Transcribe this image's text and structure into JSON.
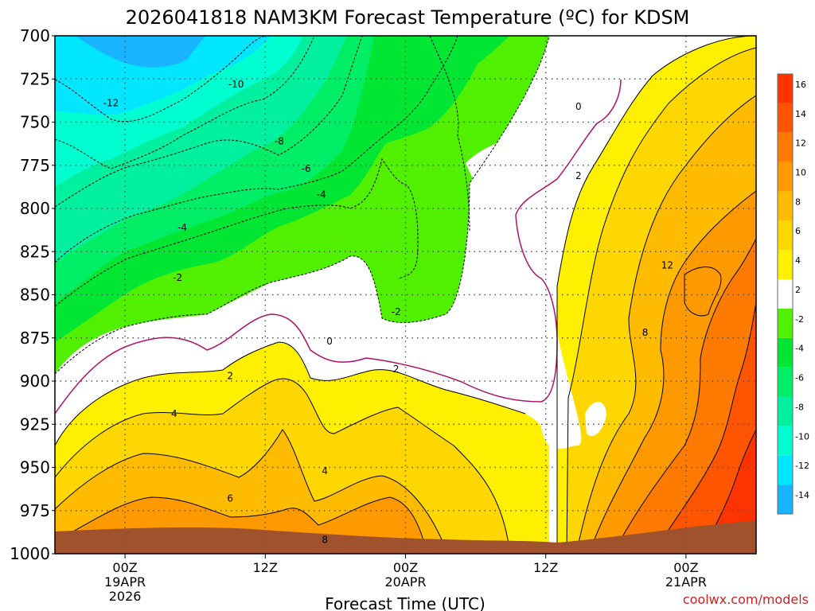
{
  "chart_data": {
    "type": "heatmap",
    "title": "2026041818 NAM3KM Forecast Temperature (ºC) for KDSM",
    "xlabel": "Forecast Time (UTC)",
    "ylabel": "",
    "credit": "coolwx.com/models",
    "x_ticks": [
      {
        "hour": 6,
        "lines": [
          "00Z",
          "19APR",
          "2026"
        ]
      },
      {
        "hour": 18,
        "lines": [
          "12Z"
        ]
      },
      {
        "hour": 30,
        "lines": [
          "00Z",
          "20APR"
        ]
      },
      {
        "hour": 42,
        "lines": [
          "12Z"
        ]
      },
      {
        "hour": 54,
        "lines": [
          "00Z",
          "21APR"
        ]
      }
    ],
    "xlim": [
      0,
      60
    ],
    "y_ticks": [
      700,
      725,
      750,
      775,
      800,
      825,
      850,
      875,
      900,
      925,
      950,
      975,
      1000
    ],
    "ylim": [
      700,
      1000
    ],
    "grid": true,
    "colorbar": {
      "levels": [
        -14,
        -12,
        -10,
        -8,
        -6,
        -4,
        -2,
        2,
        4,
        6,
        8,
        10,
        12,
        14,
        16
      ],
      "tick_labels": [
        "-14",
        "-12",
        "-10",
        "-8",
        "-6",
        "-4",
        "-2",
        "2",
        "4",
        "6",
        "8",
        "10",
        "12",
        "14",
        "16"
      ],
      "colors": [
        "#19b4ff",
        "#00e6ff",
        "#00ffd0",
        "#00f0a0",
        "#00ee66",
        "#00e632",
        "#50f000",
        "#ffffff",
        "#fff000",
        "#ffd700",
        "#ffbb00",
        "#ff9900",
        "#ff7a00",
        "#ff5500",
        "#ff3300"
      ]
    },
    "contour_labels": [
      {
        "hour": 4.8,
        "pressure": 739,
        "text": "-12"
      },
      {
        "hour": 15.5,
        "pressure": 728,
        "text": "-10"
      },
      {
        "hour": 19.2,
        "pressure": 761,
        "text": "-8"
      },
      {
        "hour": 21.5,
        "pressure": 777,
        "text": "-6"
      },
      {
        "hour": 22.8,
        "pressure": 792,
        "text": "-4"
      },
      {
        "hour": 10.9,
        "pressure": 811,
        "text": "-4"
      },
      {
        "hour": 10.5,
        "pressure": 840,
        "text": "-2"
      },
      {
        "hour": 29.2,
        "pressure": 860,
        "text": "-2"
      },
      {
        "hour": 23.5,
        "pressure": 877,
        "text": "0"
      },
      {
        "hour": 44.8,
        "pressure": 741,
        "text": "0"
      },
      {
        "hour": 44.8,
        "pressure": 781,
        "text": "2"
      },
      {
        "hour": 15.0,
        "pressure": 897,
        "text": "2"
      },
      {
        "hour": 29.2,
        "pressure": 893,
        "text": "2"
      },
      {
        "hour": 10.2,
        "pressure": 919,
        "text": "4"
      },
      {
        "hour": 23.1,
        "pressure": 952,
        "text": "4"
      },
      {
        "hour": 15.0,
        "pressure": 968,
        "text": "6"
      },
      {
        "hour": 23.1,
        "pressure": 992,
        "text": "8"
      },
      {
        "hour": 50.5,
        "pressure": 872,
        "text": "8"
      },
      {
        "hour": 52.4,
        "pressure": 833,
        "text": "12"
      }
    ]
  }
}
